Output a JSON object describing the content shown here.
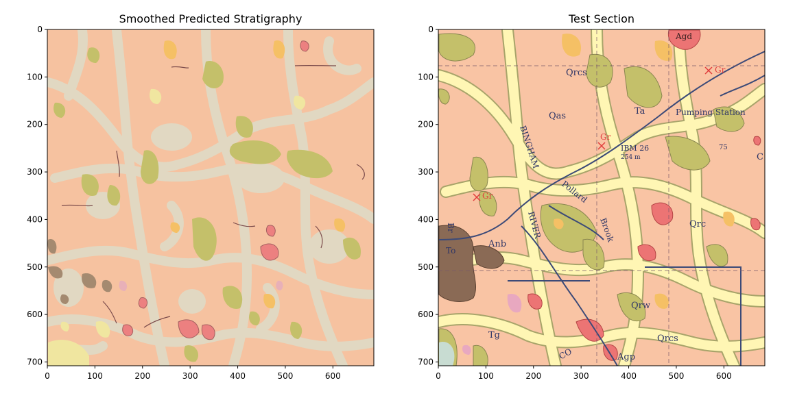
{
  "chart_data": [
    {
      "type": "heatmap",
      "title": "Smoothed Predicted Stratigraphy",
      "xlim": [
        0,
        686
      ],
      "ylim": [
        708,
        0
      ],
      "xticks": [
        0,
        100,
        200,
        300,
        400,
        500,
        600
      ],
      "yticks": [
        0,
        100,
        200,
        300,
        400,
        500,
        600,
        700
      ],
      "image": "categorical stratigraphy map (smoothed prediction)",
      "palette": {
        "background": "#f6c2a0",
        "corridors": "#e1d8c2",
        "olive": "#c4c06a",
        "yellow": "#f0e6a0",
        "orange": "#f5c065",
        "red": "#ec8080",
        "brown": "#a48a70",
        "pink": "#e8b0b8"
      }
    },
    {
      "type": "heatmap",
      "title": "Test Section",
      "xlim": [
        0,
        686
      ],
      "ylim": [
        708,
        0
      ],
      "xticks": [
        0,
        100,
        200,
        300,
        400,
        500,
        600
      ],
      "yticks": [
        0,
        100,
        200,
        300,
        400,
        500,
        600,
        700
      ],
      "image": "scanned geological map section",
      "map_labels": [
        "Qrcs",
        "Gr",
        "Qas",
        "Ta",
        "Pumping Station",
        "BINGHAM",
        "Gr",
        "IBM 26",
        "254 m",
        "75",
        "C",
        "Gr",
        "Pollard",
        "RIVER",
        "Brook",
        "Qrc",
        "Anb",
        "Br",
        "To",
        "Qrw",
        "Tg",
        "Qrcs",
        "Agp",
        "Agd",
        "CO"
      ],
      "palette": {
        "background": "#f9c4a4",
        "corridors": "#fff6b4",
        "olive": "#c4c06a",
        "orange": "#f5c065",
        "red": "#ec7474",
        "brown": "#8a6a55",
        "lines": "#3c4a78"
      }
    }
  ]
}
